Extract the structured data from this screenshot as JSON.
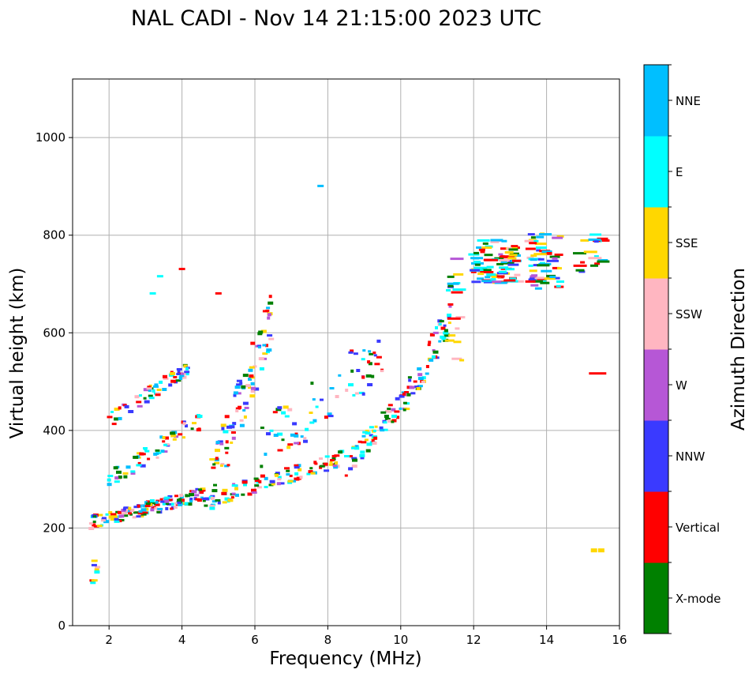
{
  "chart_data": {
    "type": "scatter",
    "title": "NAL CADI - Nov 14 21:15:00 2023 UTC",
    "xlabel": "Frequency (MHz)",
    "ylabel": "Virtual height (km)",
    "xlim": [
      1,
      16
    ],
    "ylim": [
      0,
      1120
    ],
    "xticks": [
      2,
      4,
      6,
      8,
      10,
      12,
      14,
      16
    ],
    "yticks": [
      0,
      200,
      400,
      600,
      800,
      1000
    ],
    "grid": true,
    "colorbar": {
      "label": "Azimuth Direction",
      "categories": [
        {
          "name": "X-mode",
          "color": "#008000"
        },
        {
          "name": "Vertical",
          "color": "#ff0000"
        },
        {
          "name": "NNW",
          "color": "#3a3aff"
        },
        {
          "name": "W",
          "color": "#b657d6"
        },
        {
          "name": "SSW",
          "color": "#ffb6c1"
        },
        {
          "name": "SSE",
          "color": "#ffd700"
        },
        {
          "name": "E",
          "color": "#00ffff"
        },
        {
          "name": "NNE",
          "color": "#00bfff"
        }
      ]
    },
    "traces": [
      {
        "name": "E-layer echo",
        "x0": 1.5,
        "x1": 1.75,
        "h0": 88,
        "h1": 140,
        "n": 6,
        "spread": 20
      },
      {
        "name": "F1 trace",
        "x0": 1.5,
        "x1": 4.6,
        "h0": 210,
        "h1": 270,
        "n": 150,
        "spread": 14
      },
      {
        "name": "F2 trace",
        "x0": 4.6,
        "x1": 8.5,
        "h0": 255,
        "h1": 345,
        "n": 100,
        "spread": 16
      },
      {
        "name": "F2 upper",
        "x0": 8.5,
        "x1": 10.2,
        "h0": 330,
        "h1": 470,
        "n": 70,
        "spread": 24
      },
      {
        "name": "F2 cusp",
        "x0": 10.2,
        "x1": 11.4,
        "h0": 470,
        "h1": 640,
        "n": 50,
        "spread": 35
      },
      {
        "name": "Second hop low",
        "x0": 2.0,
        "x1": 4.5,
        "h0": 300,
        "h1": 420,
        "n": 60,
        "spread": 20
      },
      {
        "name": "Second hop high",
        "x0": 2.0,
        "x1": 4.2,
        "h0": 420,
        "h1": 530,
        "n": 60,
        "spread": 14
      },
      {
        "name": "Spread F (oblique)",
        "x0": 4.8,
        "x1": 6.5,
        "h0": 280,
        "h1": 640,
        "n": 90,
        "spread": 60
      },
      {
        "name": "Multi-hop diffuse",
        "x0": 6.0,
        "x1": 9.5,
        "h0": 350,
        "h1": 560,
        "n": 70,
        "spread": 60
      },
      {
        "name": "Cluster 12-13 MHz",
        "x0": 12.0,
        "x1": 13.2,
        "h0": 700,
        "h1": 790,
        "n": 90,
        "spread": 0
      },
      {
        "name": "Cluster 13.5-14.5 MHz",
        "x0": 13.5,
        "x1": 14.4,
        "h0": 690,
        "h1": 805,
        "n": 60,
        "spread": 0
      },
      {
        "name": "Cluster 15-15.6 MHz",
        "x0": 14.9,
        "x1": 15.6,
        "h0": 725,
        "h1": 805,
        "n": 20,
        "spread": 0
      },
      {
        "name": "Scattered 11.3-11.7",
        "x0": 11.3,
        "x1": 11.7,
        "h0": 530,
        "h1": 770,
        "n": 18,
        "spread": 0
      }
    ],
    "isolated_points": [
      {
        "x": 7.8,
        "y": 900,
        "azimuth": "NNE"
      },
      {
        "x": 15.3,
        "y": 155,
        "azimuth": "SSE"
      },
      {
        "x": 15.5,
        "y": 155,
        "azimuth": "SSE"
      },
      {
        "x": 15.4,
        "y": 516,
        "azimuth": "Vertical"
      },
      {
        "x": 4.0,
        "y": 730,
        "azimuth": "Vertical"
      },
      {
        "x": 3.4,
        "y": 715,
        "azimuth": "E"
      },
      {
        "x": 3.2,
        "y": 680,
        "azimuth": "E"
      },
      {
        "x": 5.0,
        "y": 680,
        "azimuth": "Vertical"
      },
      {
        "x": 1.6,
        "y": 92,
        "azimuth": "SSE"
      },
      {
        "x": 1.6,
        "y": 132,
        "azimuth": "SSE"
      }
    ]
  }
}
